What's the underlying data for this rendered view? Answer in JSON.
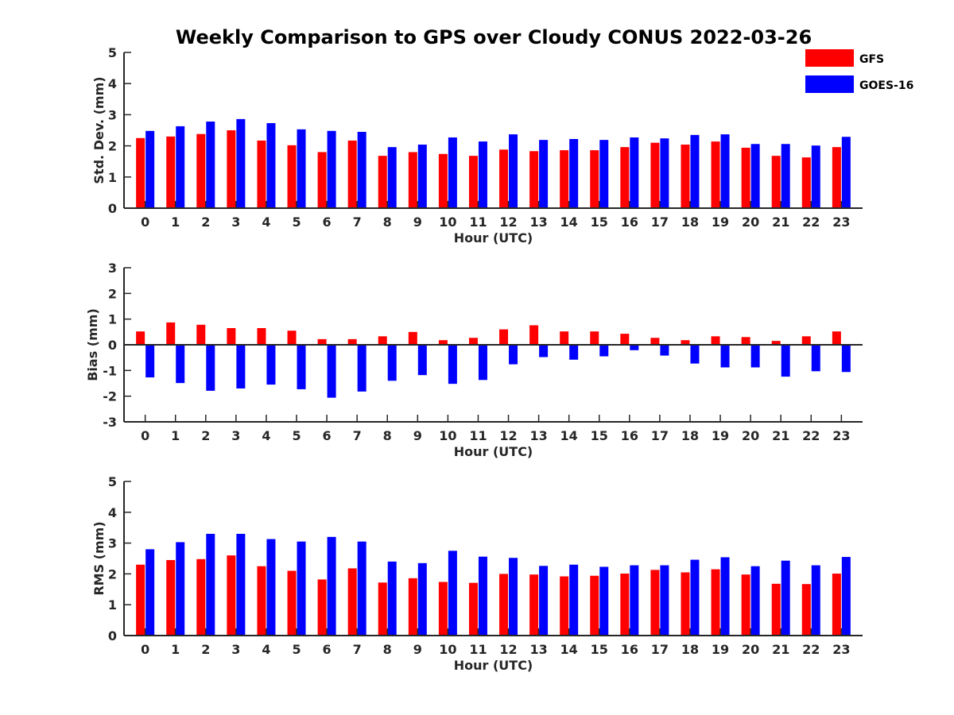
{
  "title": "Weekly Comparison to GPS over Cloudy CONUS 2022-03-26",
  "legend": [
    {
      "name": "GFS",
      "color": "#ff0000"
    },
    {
      "name": "GOES-16",
      "color": "#0000ff"
    }
  ],
  "chart_data": [
    {
      "type": "bar",
      "title": "",
      "xlabel": "Hour (UTC)",
      "ylabel": "Std. Dev. (mm)",
      "ylim": [
        0,
        5
      ],
      "yticks": [
        "0",
        "1",
        "2",
        "3",
        "4",
        "5"
      ],
      "categories": [
        "0",
        "1",
        "2",
        "3",
        "4",
        "5",
        "6",
        "7",
        "8",
        "9",
        "10",
        "11",
        "12",
        "13",
        "14",
        "15",
        "16",
        "17",
        "18",
        "19",
        "20",
        "21",
        "22",
        "23"
      ],
      "series": [
        {
          "name": "GFS",
          "color": "#ff0000",
          "values": [
            2.25,
            2.3,
            2.38,
            2.5,
            2.17,
            2.02,
            1.8,
            2.17,
            1.68,
            1.8,
            1.74,
            1.68,
            1.88,
            1.83,
            1.86,
            1.86,
            1.96,
            2.1,
            2.04,
            2.14,
            1.94,
            1.68,
            1.63,
            1.96
          ]
        },
        {
          "name": "GOES-16",
          "color": "#0000ff",
          "values": [
            2.48,
            2.63,
            2.78,
            2.86,
            2.73,
            2.53,
            2.48,
            2.45,
            1.96,
            2.04,
            2.27,
            2.14,
            2.37,
            2.19,
            2.22,
            2.19,
            2.27,
            2.24,
            2.35,
            2.37,
            2.06,
            2.06,
            2.01,
            2.29
          ]
        }
      ]
    },
    {
      "type": "bar",
      "title": "",
      "xlabel": "Hour (UTC)",
      "ylabel": "Bias (mm)",
      "ylim": [
        -3,
        3
      ],
      "yticks": [
        "-3",
        "-2",
        "-1",
        "0",
        "1",
        "2",
        "3"
      ],
      "categories": [
        "0",
        "1",
        "2",
        "3",
        "4",
        "5",
        "6",
        "7",
        "8",
        "9",
        "10",
        "11",
        "12",
        "13",
        "14",
        "15",
        "16",
        "17",
        "18",
        "19",
        "20",
        "21",
        "22",
        "23"
      ],
      "series": [
        {
          "name": "GFS",
          "color": "#ff0000",
          "values": [
            0.52,
            0.87,
            0.78,
            0.65,
            0.65,
            0.55,
            0.22,
            0.22,
            0.33,
            0.5,
            0.18,
            0.27,
            0.6,
            0.76,
            0.52,
            0.52,
            0.43,
            0.27,
            0.18,
            0.33,
            0.3,
            0.15,
            0.33,
            0.52
          ]
        },
        {
          "name": "GOES-16",
          "color": "#0000ff",
          "values": [
            -1.27,
            -1.49,
            -1.79,
            -1.7,
            -1.55,
            -1.73,
            -2.06,
            -1.82,
            -1.4,
            -1.18,
            -1.52,
            -1.37,
            -0.76,
            -0.48,
            -0.58,
            -0.45,
            -0.21,
            -0.42,
            -0.73,
            -0.88,
            -0.88,
            -1.24,
            -1.03,
            -1.06
          ]
        }
      ]
    },
    {
      "type": "bar",
      "title": "",
      "xlabel": "Hour (UTC)",
      "ylabel": "RMS (mm)",
      "ylim": [
        0,
        5
      ],
      "yticks": [
        "0",
        "1",
        "2",
        "3",
        "4",
        "5"
      ],
      "categories": [
        "0",
        "1",
        "2",
        "3",
        "4",
        "5",
        "6",
        "7",
        "8",
        "9",
        "10",
        "11",
        "12",
        "13",
        "14",
        "15",
        "16",
        "17",
        "18",
        "19",
        "20",
        "21",
        "22",
        "23"
      ],
      "series": [
        {
          "name": "GFS",
          "color": "#ff0000",
          "values": [
            2.3,
            2.45,
            2.48,
            2.6,
            2.25,
            2.1,
            1.82,
            2.18,
            1.72,
            1.86,
            1.74,
            1.71,
            2.0,
            1.98,
            1.92,
            1.94,
            2.01,
            2.13,
            2.05,
            2.15,
            1.98,
            1.68,
            1.67,
            2.01
          ]
        },
        {
          "name": "GOES-16",
          "color": "#0000ff",
          "values": [
            2.8,
            3.03,
            3.3,
            3.3,
            3.13,
            3.05,
            3.2,
            3.05,
            2.4,
            2.35,
            2.75,
            2.56,
            2.52,
            2.26,
            2.3,
            2.23,
            2.28,
            2.28,
            2.46,
            2.54,
            2.25,
            2.43,
            2.28,
            2.55
          ]
        }
      ]
    }
  ]
}
